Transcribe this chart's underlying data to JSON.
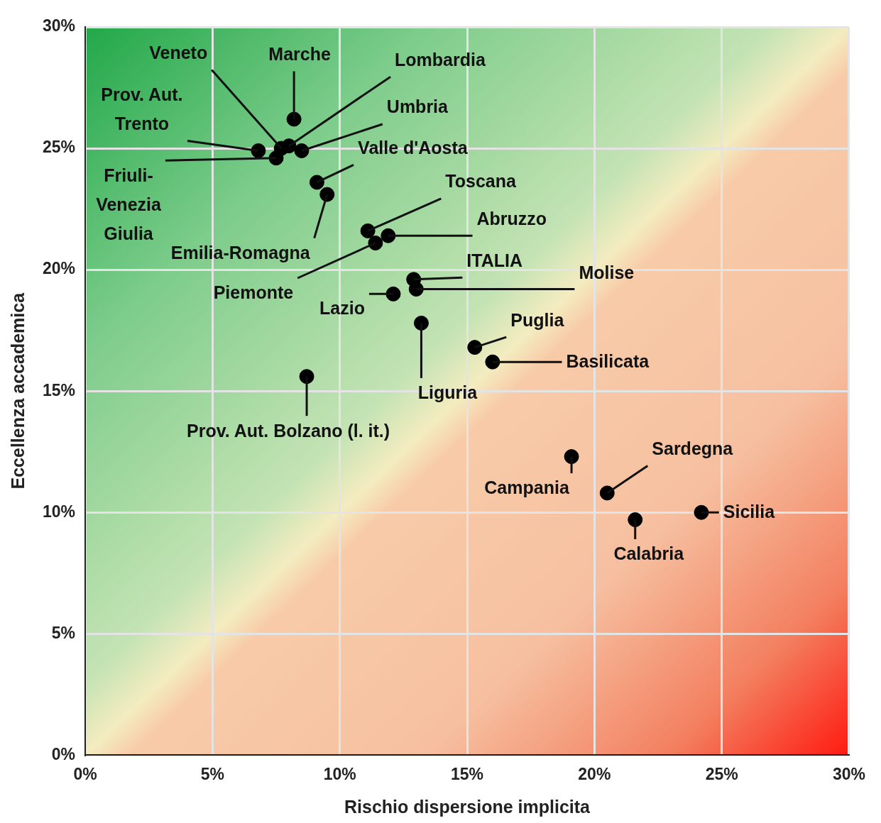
{
  "chart_data": {
    "type": "scatter",
    "xlabel": "Rischio dispersione implicita",
    "ylabel": "Eccellenza accademica",
    "xlim": [
      0,
      30
    ],
    "ylim": [
      0,
      30
    ],
    "xticks": [
      {
        "value": 0,
        "label": "0%"
      },
      {
        "value": 5,
        "label": "5%"
      },
      {
        "value": 10,
        "label": "10%"
      },
      {
        "value": 15,
        "label": "15%"
      },
      {
        "value": 20,
        "label": "20%"
      },
      {
        "value": 25,
        "label": "25%"
      },
      {
        "value": 30,
        "label": "30%"
      }
    ],
    "yticks": [
      {
        "value": 0,
        "label": "0%"
      },
      {
        "value": 5,
        "label": "5%"
      },
      {
        "value": 10,
        "label": "10%"
      },
      {
        "value": 15,
        "label": "15%"
      },
      {
        "value": 20,
        "label": "20%"
      },
      {
        "value": 25,
        "label": "25%"
      },
      {
        "value": 30,
        "label": "30%"
      }
    ],
    "grid": true,
    "legend": false,
    "marker": "circle",
    "series": [
      {
        "name": "Veneto",
        "color": "#000000",
        "x": [
          7.7
        ],
        "values": [
          25.0
        ]
      },
      {
        "name": "Marche",
        "color": "#000000",
        "x": [
          8.2
        ],
        "values": [
          26.2
        ]
      },
      {
        "name": "Lombardia",
        "color": "#000000",
        "x": [
          8.0
        ],
        "values": [
          25.1
        ]
      },
      {
        "name": "Prov. Aut. Trento",
        "color": "#000000",
        "x": [
          6.8
        ],
        "values": [
          24.9
        ]
      },
      {
        "name": "Umbria",
        "color": "#000000",
        "x": [
          8.5
        ],
        "values": [
          24.9
        ]
      },
      {
        "name": "Valle d'Aosta",
        "color": "#000000",
        "x": [
          9.1
        ],
        "values": [
          23.6
        ]
      },
      {
        "name": "Friuli-Venezia Giulia",
        "color": "#000000",
        "x": [
          7.5
        ],
        "values": [
          24.6
        ]
      },
      {
        "name": "Toscana",
        "color": "#000000",
        "x": [
          11.1
        ],
        "values": [
          21.6
        ]
      },
      {
        "name": "Abruzzo",
        "color": "#000000",
        "x": [
          11.9
        ],
        "values": [
          21.4
        ]
      },
      {
        "name": "Emilia-Romagna",
        "color": "#000000",
        "x": [
          9.5
        ],
        "values": [
          23.1
        ]
      },
      {
        "name": "ITALIA",
        "color": "#000000",
        "x": [
          12.9
        ],
        "values": [
          19.6
        ]
      },
      {
        "name": "Molise",
        "color": "#000000",
        "x": [
          13.0
        ],
        "values": [
          19.2
        ]
      },
      {
        "name": "Piemonte",
        "color": "#000000",
        "x": [
          11.4
        ],
        "values": [
          21.1
        ]
      },
      {
        "name": "Lazio",
        "color": "#000000",
        "x": [
          12.1
        ],
        "values": [
          19.0
        ]
      },
      {
        "name": "Puglia",
        "color": "#000000",
        "x": [
          15.3
        ],
        "values": [
          16.8
        ]
      },
      {
        "name": "Basilicata",
        "color": "#000000",
        "x": [
          16.0
        ],
        "values": [
          16.2
        ]
      },
      {
        "name": "Liguria",
        "color": "#000000",
        "x": [
          13.2
        ],
        "values": [
          17.8
        ]
      },
      {
        "name": "Prov. Aut. Bolzano (l. it.)",
        "color": "#000000",
        "x": [
          8.7
        ],
        "values": [
          15.6
        ]
      },
      {
        "name": "Sardegna",
        "color": "#000000",
        "x": [
          20.5
        ],
        "values": [
          10.8
        ]
      },
      {
        "name": "Campania",
        "color": "#000000",
        "x": [
          19.1
        ],
        "values": [
          12.3
        ]
      },
      {
        "name": "Sicilia",
        "color": "#000000",
        "x": [
          24.2
        ],
        "values": [
          10.0
        ]
      },
      {
        "name": "Calabria",
        "color": "#000000",
        "x": [
          21.6
        ],
        "values": [
          9.7
        ]
      }
    ]
  }
}
